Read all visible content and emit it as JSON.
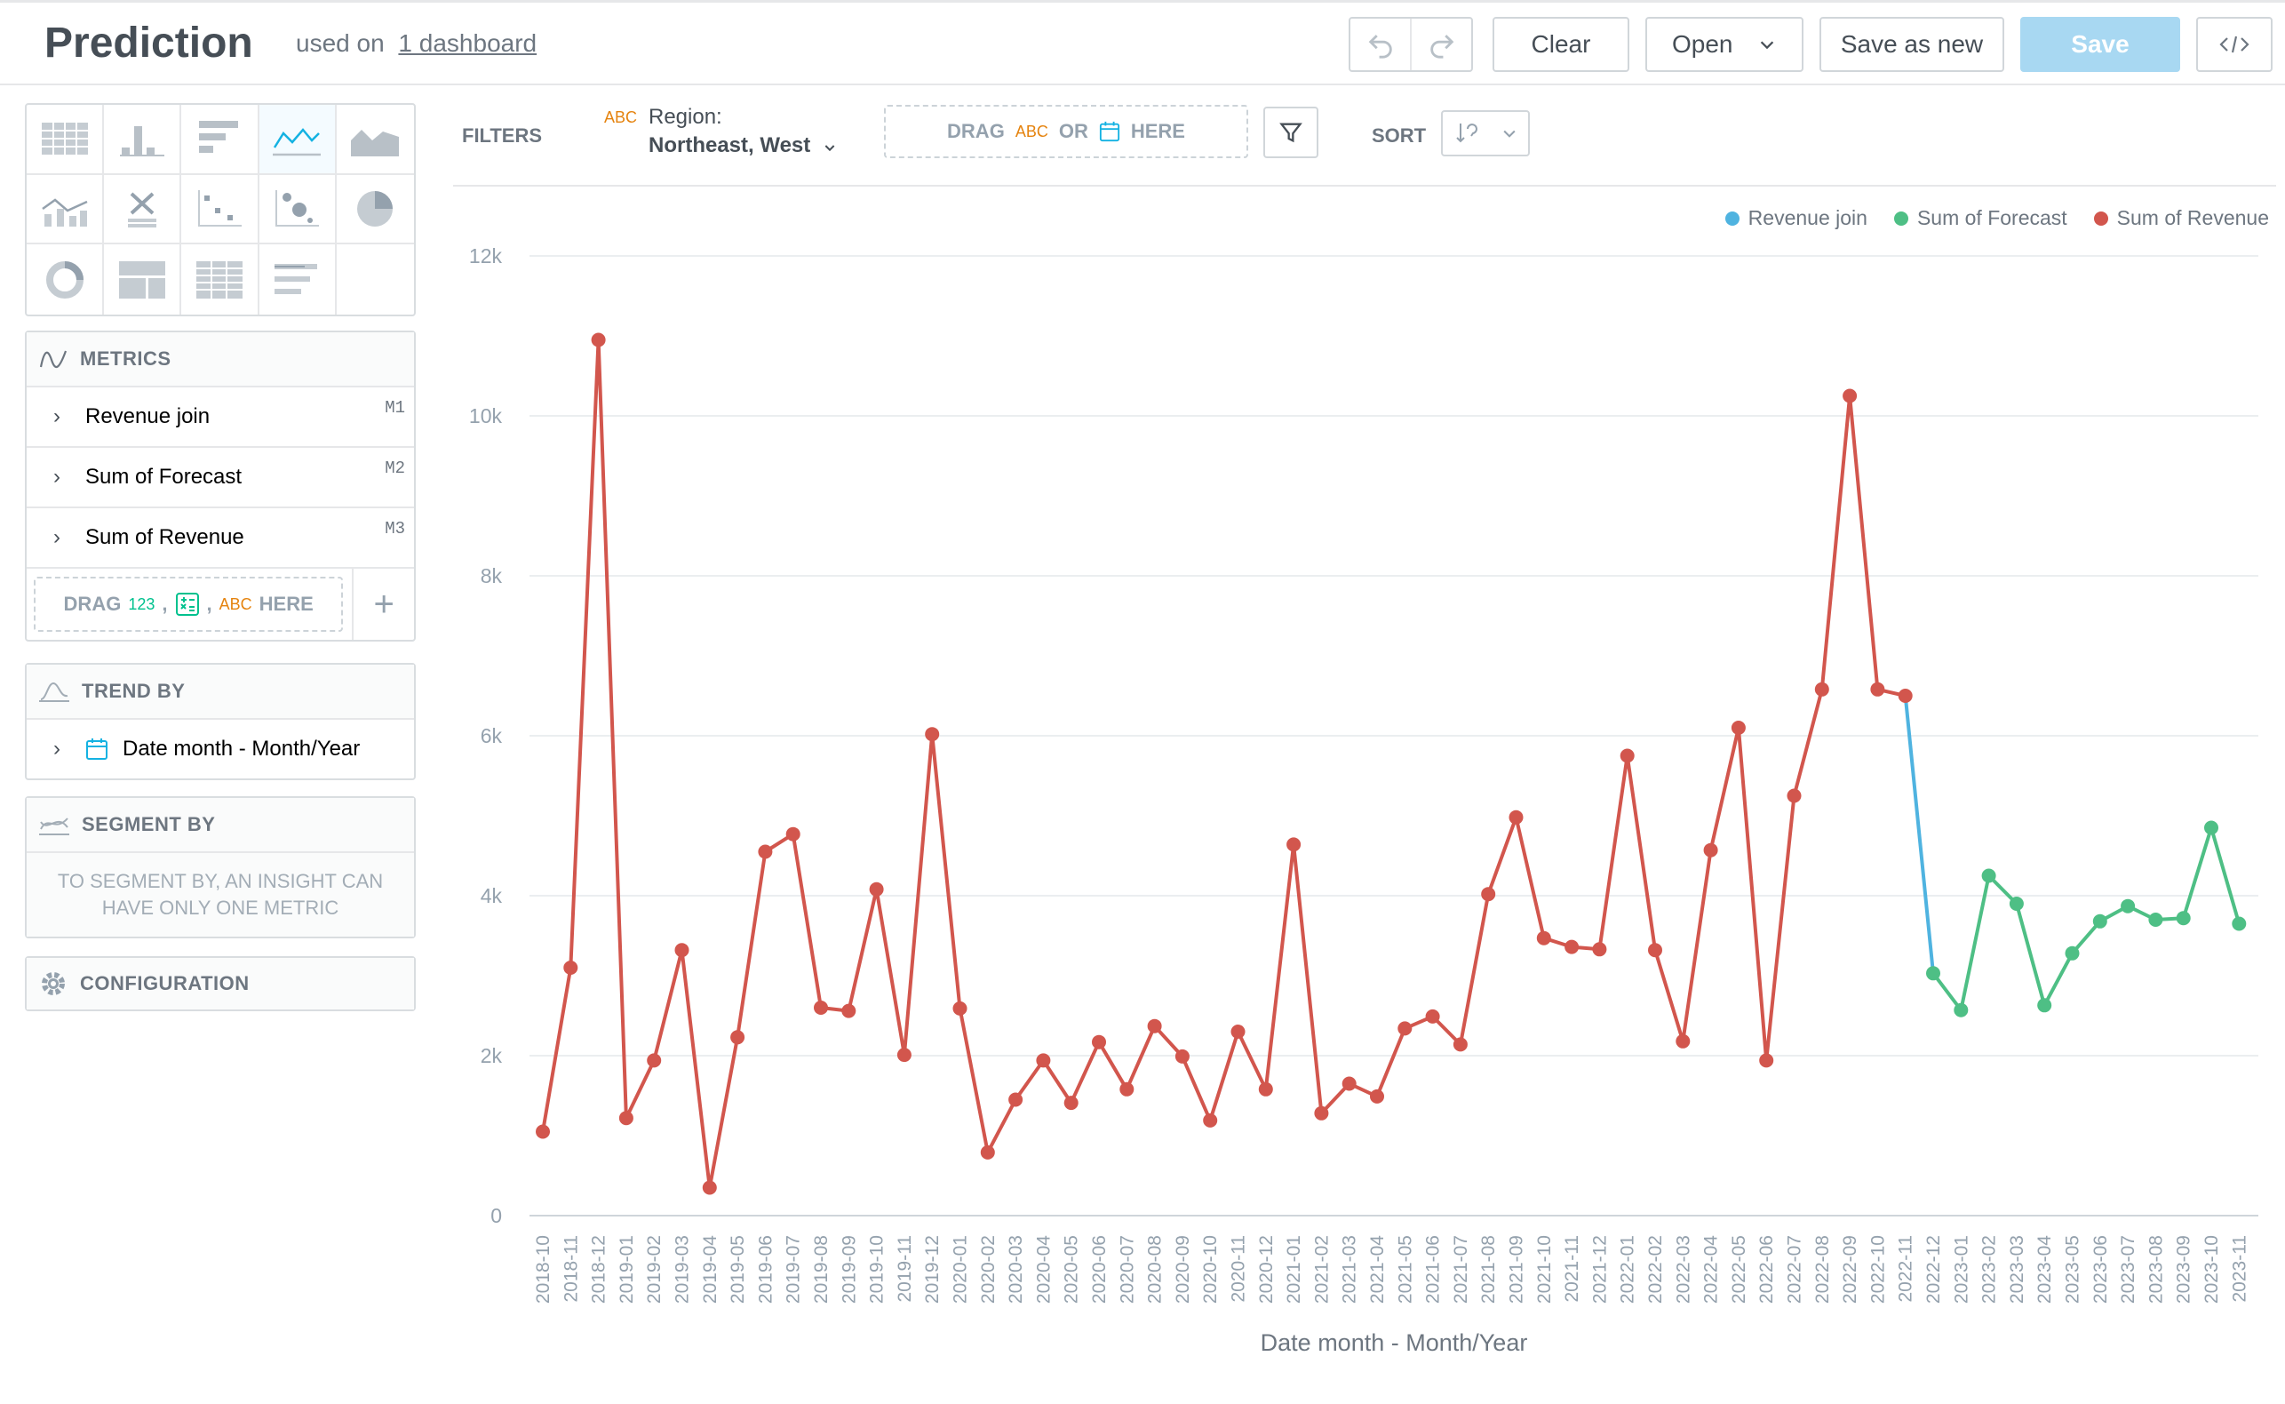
{
  "header": {
    "title": "Prediction",
    "used_on_prefix": "used on",
    "used_on_link": "1 dashboard",
    "clear_label": "Clear",
    "open_label": "Open",
    "save_as_new_label": "Save as new",
    "save_label": "Save"
  },
  "left_panel": {
    "metrics_title": "METRICS",
    "metrics": [
      {
        "label": "Revenue join",
        "id": "M1"
      },
      {
        "label": "Sum of Forecast",
        "id": "M2"
      },
      {
        "label": "Sum of Revenue",
        "id": "M3"
      }
    ],
    "metrics_drop": {
      "drag": "DRAG",
      "num": "123",
      "abc": "ABC",
      "here": "HERE"
    },
    "trend_title": "TREND BY",
    "trend_item": "Date month - Month/Year",
    "segment_title": "SEGMENT BY",
    "segment_note": "TO SEGMENT BY, AN INSIGHT CAN HAVE ONLY ONE METRIC",
    "config_title": "CONFIGURATION"
  },
  "filter_bar": {
    "filters_label": "FILTERS",
    "region_abc": "ABC",
    "region_label": "Region:",
    "region_value": "Northeast, West",
    "drop_drag": "DRAG",
    "drop_abc": "ABC",
    "drop_or": "OR",
    "drop_here": "HERE",
    "sort_label": "SORT"
  },
  "chart_data": {
    "type": "line",
    "xlabel": "Date month - Month/Year",
    "ylabel": "",
    "ylim": [
      0,
      12000
    ],
    "yticks": [
      "0",
      "2k",
      "4k",
      "6k",
      "8k",
      "10k",
      "12k"
    ],
    "grid": true,
    "legend_position": "top-right",
    "categories": [
      "2018-10",
      "2018-11",
      "2018-12",
      "2019-01",
      "2019-02",
      "2019-03",
      "2019-04",
      "2019-05",
      "2019-06",
      "2019-07",
      "2019-08",
      "2019-09",
      "2019-10",
      "2019-11",
      "2019-12",
      "2020-01",
      "2020-02",
      "2020-03",
      "2020-04",
      "2020-05",
      "2020-06",
      "2020-07",
      "2020-08",
      "2020-09",
      "2020-10",
      "2020-11",
      "2020-12",
      "2021-01",
      "2021-02",
      "2021-03",
      "2021-04",
      "2021-05",
      "2021-06",
      "2021-07",
      "2021-08",
      "2021-09",
      "2021-10",
      "2021-11",
      "2021-12",
      "2022-01",
      "2022-02",
      "2022-03",
      "2022-04",
      "2022-05",
      "2022-06",
      "2022-07",
      "2022-08",
      "2022-09",
      "2022-10",
      "2022-11",
      "2022-12",
      "2023-01",
      "2023-02",
      "2023-03",
      "2023-04",
      "2023-05",
      "2023-06",
      "2023-07",
      "2023-08",
      "2023-09",
      "2023-10",
      "2023-11"
    ],
    "series": [
      {
        "name": "Revenue join",
        "color": "#4fb3e0",
        "points": [
          [
            "2022-11",
            6500
          ],
          [
            "2022-12",
            3030
          ]
        ]
      },
      {
        "name": "Sum of Forecast",
        "color": "#4ebf85",
        "points": [
          [
            "2022-12",
            3030
          ],
          [
            "2023-01",
            2570
          ],
          [
            "2023-02",
            4250
          ],
          [
            "2023-03",
            3900
          ],
          [
            "2023-04",
            2630
          ],
          [
            "2023-05",
            3280
          ],
          [
            "2023-06",
            3680
          ],
          [
            "2023-07",
            3870
          ],
          [
            "2023-08",
            3700
          ],
          [
            "2023-09",
            3720
          ],
          [
            "2023-10",
            4850
          ],
          [
            "2023-11",
            3650
          ]
        ]
      },
      {
        "name": "Sum of Revenue",
        "color": "#d2564d",
        "points": [
          [
            "2018-10",
            1050
          ],
          [
            "2018-11",
            3100
          ],
          [
            "2018-12",
            10950
          ],
          [
            "2019-01",
            1220
          ],
          [
            "2019-02",
            1940
          ],
          [
            "2019-03",
            3320
          ],
          [
            "2019-04",
            350
          ],
          [
            "2019-05",
            2230
          ],
          [
            "2019-06",
            4550
          ],
          [
            "2019-07",
            4770
          ],
          [
            "2019-08",
            2600
          ],
          [
            "2019-09",
            2560
          ],
          [
            "2019-10",
            4080
          ],
          [
            "2019-11",
            2010
          ],
          [
            "2019-12",
            6020
          ],
          [
            "2020-01",
            2590
          ],
          [
            "2020-02",
            790
          ],
          [
            "2020-03",
            1450
          ],
          [
            "2020-04",
            1940
          ],
          [
            "2020-05",
            1410
          ],
          [
            "2020-06",
            2170
          ],
          [
            "2020-07",
            1580
          ],
          [
            "2020-08",
            2370
          ],
          [
            "2020-09",
            1990
          ],
          [
            "2020-10",
            1190
          ],
          [
            "2020-11",
            2300
          ],
          [
            "2020-12",
            1580
          ],
          [
            "2021-01",
            4640
          ],
          [
            "2021-02",
            1280
          ],
          [
            "2021-03",
            1650
          ],
          [
            "2021-04",
            1490
          ],
          [
            "2021-05",
            2340
          ],
          [
            "2021-06",
            2490
          ],
          [
            "2021-07",
            2140
          ],
          [
            "2021-08",
            4020
          ],
          [
            "2021-09",
            4980
          ],
          [
            "2021-10",
            3470
          ],
          [
            "2021-11",
            3360
          ],
          [
            "2021-12",
            3330
          ],
          [
            "2022-01",
            5750
          ],
          [
            "2022-02",
            3320
          ],
          [
            "2022-03",
            2180
          ],
          [
            "2022-04",
            4570
          ],
          [
            "2022-05",
            6100
          ],
          [
            "2022-06",
            1940
          ],
          [
            "2022-07",
            5250
          ],
          [
            "2022-08",
            6580
          ],
          [
            "2022-09",
            10250
          ],
          [
            "2022-10",
            6580
          ],
          [
            "2022-11",
            6500
          ]
        ]
      }
    ]
  }
}
